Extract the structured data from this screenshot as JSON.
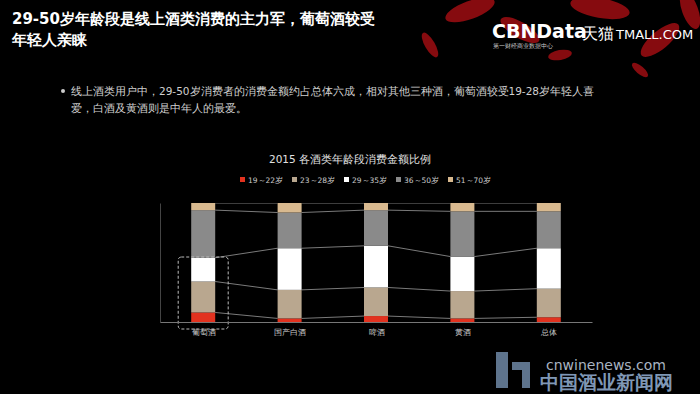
{
  "page": {
    "title_lines": [
      "29-50岁年龄段是线上酒类消费的主力军，葡萄酒较受",
      "年轻人亲睐"
    ],
    "logo": "CBNData",
    "logo_sub": "第一财经商业数据中心",
    "partner": "天猫",
    "partner_sub": "TMALL.COM",
    "bullet_lines": [
      "线上酒类用户中，29-50岁消费者的消费金额约占总体六成，相对其他三种酒，葡萄酒较受19-28岁年轻人喜",
      "爱，白酒及黄酒则是中年人的最爱。"
    ],
    "watermark": [
      "cnwinenews.com",
      "中国酒业新闻网"
    ]
  },
  "chart_data": {
    "type": "bar",
    "stacked": true,
    "title": "2015 各酒类年龄段消费金额比例",
    "categories": [
      "葡萄酒",
      "国产白酒",
      "啤酒",
      "黄酒",
      "总体"
    ],
    "series": [
      {
        "name": "19～22岁",
        "color": "#e2321f",
        "values": [
          8,
          3,
          5,
          3,
          4
        ]
      },
      {
        "name": "23～28岁",
        "color": "#b9a78f",
        "values": [
          26,
          24,
          24,
          23,
          24
        ]
      },
      {
        "name": "29～35岁",
        "color": "#ffffff",
        "values": [
          20,
          35,
          35,
          29,
          34
        ]
      },
      {
        "name": "36～50岁",
        "color": "#8a8a8a",
        "values": [
          40,
          30,
          30,
          38,
          31
        ]
      },
      {
        "name": "51～70岁",
        "color": "#d8b98f",
        "values": [
          6,
          8,
          6,
          7,
          7
        ]
      }
    ],
    "ylim": [
      0,
      100
    ],
    "tick_labels": "x",
    "legend": "top"
  }
}
